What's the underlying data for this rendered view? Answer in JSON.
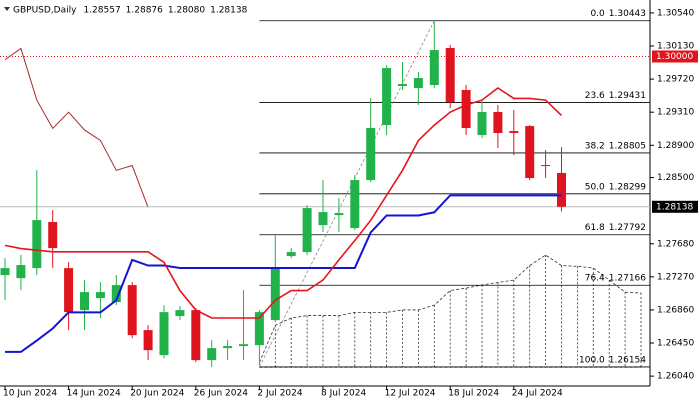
{
  "chart_data": {
    "type": "candlestick",
    "header": {
      "symbol": "GBPUSD,Daily",
      "values": [
        "1.28557",
        "1.28876",
        "1.28080",
        "1.28138"
      ]
    },
    "categories": [
      "10 Jun 2024",
      null,
      null,
      null,
      "14 Jun 2024",
      null,
      null,
      null,
      "20 Jun 2024",
      null,
      null,
      null,
      "26 Jun 2024",
      null,
      null,
      null,
      "2 Jul 2024",
      null,
      null,
      null,
      "8 Jul 2024",
      null,
      null,
      null,
      "12 Jul 2024",
      null,
      null,
      null,
      "18 Jul 2024",
      null,
      null,
      null,
      "24 Jul 2024",
      null,
      null,
      null,
      null,
      null,
      null,
      null,
      null
    ],
    "open": [
      1.27292,
      1.27254,
      1.27378,
      1.27949,
      1.27378,
      1.26858,
      1.27007,
      1.26957,
      1.27168,
      1.2661,
      1.263,
      1.26784,
      1.26858,
      1.26238,
      1.26387,
      1.26412,
      1.26424,
      1.26734,
      1.27527,
      1.27577,
      1.27911,
      1.28035,
      1.27874,
      1.28469,
      1.29151,
      1.29634,
      1.29609,
      1.29647,
      1.30105,
      1.29585,
      1.29027,
      1.29312,
      1.29076,
      1.29138,
      1.28655,
      1.28557,
      null,
      null,
      null,
      null,
      null
    ],
    "high": [
      1.27502,
      1.2754,
      1.28593,
      1.28097,
      1.27453,
      1.2723,
      1.27205,
      1.27292,
      1.27205,
      1.26672,
      1.2692,
      1.26907,
      1.26883,
      1.26486,
      1.26486,
      1.27106,
      1.26858,
      1.27787,
      1.27626,
      1.28159,
      1.28469,
      1.28246,
      1.28531,
      1.29485,
      1.29894,
      1.29932,
      1.29808,
      1.30443,
      1.30142,
      1.29647,
      1.29461,
      1.29399,
      1.29337,
      1.29151,
      1.28841,
      1.28876,
      null,
      null,
      null,
      null,
      null
    ],
    "low": [
      1.26982,
      1.27106,
      1.27292,
      1.27378,
      1.2661,
      1.2661,
      1.26759,
      1.2692,
      1.26511,
      1.26238,
      1.26263,
      1.26734,
      1.26213,
      1.26154,
      1.26238,
      1.26238,
      1.26176,
      1.26709,
      1.27502,
      1.2754,
      1.27825,
      1.27825,
      1.27849,
      1.28444,
      1.29027,
      1.29585,
      1.29399,
      1.29609,
      1.29361,
      1.29027,
      1.2899,
      1.28866,
      1.28779,
      1.28469,
      1.28494,
      1.2808,
      null,
      null,
      null,
      null,
      null
    ],
    "close": [
      1.27378,
      1.27416,
      1.27973,
      1.27626,
      1.26833,
      1.27081,
      1.27081,
      1.27168,
      1.26548,
      1.26362,
      1.26833,
      1.26858,
      1.26238,
      1.26387,
      1.26412,
      1.26436,
      1.26833,
      1.27378,
      1.27577,
      1.28122,
      1.28072,
      1.2806,
      1.28469,
      1.29114,
      1.29857,
      1.29659,
      1.29733,
      1.3008,
      1.29436,
      1.29114,
      1.29312,
      1.29052,
      1.29052,
      1.28494,
      1.28643,
      1.28138,
      null,
      null,
      null,
      null,
      null
    ],
    "up_color": "#21b24b",
    "down_color": "#e0141e",
    "tenkan": {
      "color": "#e8141a",
      "values": [
        1.2766,
        1.2762,
        1.276,
        1.2758,
        1.2758,
        1.2758,
        1.2758,
        1.2758,
        1.2758,
        1.2758,
        1.2745,
        1.271,
        1.2686,
        1.2676,
        1.2676,
        1.2676,
        1.2676,
        1.2698,
        1.271,
        1.271,
        1.2723,
        1.2748,
        1.2772,
        1.2797,
        1.2828,
        1.2859,
        1.2896,
        1.2915,
        1.2931,
        1.294,
        1.2946,
        1.2961,
        1.2948,
        1.2948,
        1.2946,
        1.2927,
        null,
        null,
        null,
        null,
        null
      ]
    },
    "kijun": {
      "color": "#1414d2",
      "values": [
        1.2634,
        1.2634,
        1.2648,
        1.2663,
        1.2683,
        1.2683,
        1.2683,
        1.2698,
        1.2748,
        1.2741,
        1.2741,
        1.2738,
        1.2738,
        1.2738,
        1.2738,
        1.2738,
        1.2738,
        1.2738,
        1.2738,
        1.2738,
        1.2738,
        1.2738,
        1.2738,
        1.2782,
        1.2803,
        1.2803,
        1.2803,
        1.2807,
        1.2828,
        1.2828,
        1.2828,
        1.2828,
        1.2828,
        1.2828,
        1.2828,
        1.2828,
        null,
        null,
        null,
        null,
        null
      ]
    },
    "chikou": {
      "color": "#a52a2a",
      "values": [
        1.2996,
        1.301,
        1.2946,
        1.2911,
        1.2931,
        1.2909,
        1.2896,
        1.2859,
        1.2865,
        1.2813,
        null,
        null,
        null,
        null,
        null,
        null,
        null,
        null,
        null,
        null,
        null,
        null,
        null,
        null,
        null,
        null,
        null,
        null,
        null,
        null,
        null,
        null,
        null,
        null,
        null,
        null,
        null,
        null,
        null,
        null,
        null
      ]
    },
    "span_a": {
      "color": "#333333",
      "values": [
        null,
        null,
        null,
        null,
        null,
        null,
        null,
        null,
        null,
        null,
        null,
        null,
        null,
        null,
        null,
        null,
        1.2621,
        1.2667,
        1.2676,
        1.2679,
        1.2679,
        1.2679,
        1.2683,
        1.2683,
        1.2683,
        1.2686,
        1.2686,
        1.2692,
        1.271,
        1.2713,
        1.2717,
        1.272,
        1.2723,
        1.2741,
        1.2754,
        1.2741,
        1.274,
        1.2738,
        1.2723,
        1.2708,
        1.2707
      ]
    },
    "span_b": {
      "color": "#333333",
      "values": [
        null,
        null,
        null,
        null,
        null,
        null,
        null,
        null,
        null,
        null,
        null,
        null,
        null,
        null,
        null,
        null,
        1.2615,
        1.2615,
        1.2615,
        1.2615,
        1.2615,
        1.2615,
        1.2615,
        1.2615,
        1.2615,
        1.2615,
        1.2615,
        1.2615,
        1.2615,
        1.2615,
        1.2615,
        1.2615,
        1.2615,
        1.2615,
        1.2615,
        1.2615,
        1.2615,
        1.2615,
        1.2615,
        1.2615,
        1.2615
      ]
    },
    "fibo_levels": [
      {
        "name": "0.0",
        "value": 1.30443
      },
      {
        "name": "23.6",
        "value": 1.29431
      },
      {
        "name": "38.2",
        "value": 1.28805
      },
      {
        "name": "50.0",
        "value": 1.28299
      },
      {
        "name": "61.8",
        "value": 1.27792
      },
      {
        "name": "76.4",
        "value": 1.27166
      },
      {
        "name": "100.0",
        "value": 1.26154
      }
    ],
    "level_line": {
      "value": 1.3,
      "label": "1.30000",
      "color": "#e0141e"
    },
    "current_price": {
      "value": 1.28138,
      "label": "1.28138"
    },
    "ylim": [
      1.2593,
      1.307
    ],
    "yticks": [
      {
        "value": 1.3054,
        "label": "1.30540"
      },
      {
        "value": 1.3013,
        "label": "1.30130"
      },
      {
        "value": 1.2972,
        "label": "1.29720"
      },
      {
        "value": 1.2931,
        "label": "1.29310"
      },
      {
        "value": 1.289,
        "label": "1.28900"
      },
      {
        "value": 1.285,
        "label": "1.28500"
      },
      {
        "value": 1.2768,
        "label": "1.27680"
      },
      {
        "value": 1.2727,
        "label": "1.27270"
      },
      {
        "value": 1.2686,
        "label": "1.26860"
      },
      {
        "value": 1.2645,
        "label": "1.26450"
      },
      {
        "value": 1.2604,
        "label": "1.26040"
      }
    ]
  }
}
